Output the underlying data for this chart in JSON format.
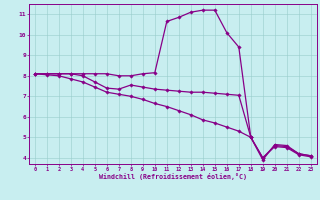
{
  "xlabel": "Windchill (Refroidissement éolien,°C)",
  "background_color": "#c8eef0",
  "line_color": "#880088",
  "grid_color": "#99cccc",
  "xlim": [
    -0.5,
    23.5
  ],
  "ylim": [
    3.7,
    11.5
  ],
  "xticks": [
    0,
    1,
    2,
    3,
    4,
    5,
    6,
    7,
    8,
    9,
    10,
    11,
    12,
    13,
    14,
    15,
    16,
    17,
    18,
    19,
    20,
    21,
    22,
    23
  ],
  "yticks": [
    4,
    5,
    6,
    7,
    8,
    9,
    10,
    11
  ],
  "line1_x": [
    0,
    1,
    2,
    3,
    4,
    5,
    6,
    7,
    8,
    9,
    10,
    11,
    12,
    13,
    14,
    15,
    16,
    17,
    18,
    19,
    20,
    21,
    22,
    23
  ],
  "line1_y": [
    8.1,
    8.1,
    8.1,
    8.1,
    8.1,
    8.1,
    8.1,
    8.0,
    8.0,
    8.1,
    8.15,
    10.65,
    10.85,
    11.1,
    11.2,
    11.2,
    10.1,
    9.4,
    5.0,
    3.9,
    4.65,
    4.6,
    4.2,
    4.1
  ],
  "line2_x": [
    0,
    1,
    2,
    3,
    4,
    5,
    6,
    7,
    8,
    9,
    10,
    11,
    12,
    13,
    14,
    15,
    16,
    17,
    18,
    19,
    20,
    21,
    22,
    23
  ],
  "line2_y": [
    8.1,
    8.1,
    8.1,
    8.1,
    8.0,
    7.7,
    7.4,
    7.35,
    7.55,
    7.45,
    7.35,
    7.3,
    7.25,
    7.2,
    7.2,
    7.15,
    7.1,
    7.05,
    5.0,
    4.0,
    4.6,
    4.55,
    4.2,
    4.1
  ],
  "line3_x": [
    0,
    1,
    2,
    3,
    4,
    5,
    6,
    7,
    8,
    9,
    10,
    11,
    12,
    13,
    14,
    15,
    16,
    17,
    18,
    19,
    20,
    21,
    22,
    23
  ],
  "line3_y": [
    8.1,
    8.05,
    8.0,
    7.85,
    7.7,
    7.45,
    7.2,
    7.1,
    7.0,
    6.85,
    6.65,
    6.5,
    6.3,
    6.1,
    5.85,
    5.7,
    5.5,
    5.3,
    5.0,
    4.0,
    4.55,
    4.5,
    4.15,
    4.05
  ]
}
